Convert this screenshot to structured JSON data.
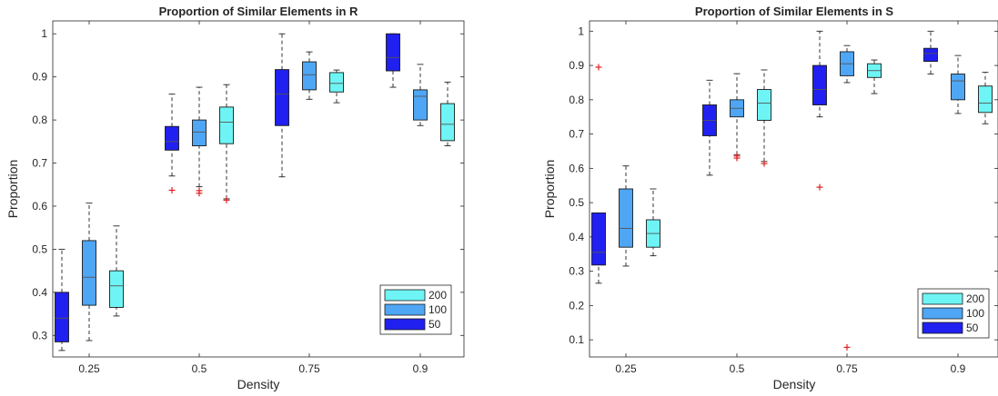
{
  "chart_data": [
    {
      "type": "boxplot",
      "title": "Proportion of Similar Elements in R",
      "xlabel": "Density",
      "ylabel": "Proportion",
      "ylim": [
        0.25,
        1.03
      ],
      "yticks": [
        "0.3",
        "0.4",
        "0.5",
        "0.6",
        "0.7",
        "0.8",
        "0.9",
        "1"
      ],
      "categories": [
        "0.25",
        "0.5",
        "0.75",
        "0.9"
      ],
      "grid": false,
      "legend_position": "bottom-right",
      "legend": [
        "200",
        "100",
        "50"
      ],
      "series": [
        {
          "name": "50",
          "color": "#2020f0",
          "boxes": [
            {
              "min": 0.265,
              "q1": 0.285,
              "median": 0.34,
              "q3": 0.4,
              "max": 0.5,
              "outliers": []
            },
            {
              "min": 0.67,
              "q1": 0.73,
              "median": 0.75,
              "q3": 0.785,
              "max": 0.86,
              "outliers": [
                0.637
              ]
            },
            {
              "min": 0.668,
              "q1": 0.787,
              "median": 0.86,
              "q3": 0.917,
              "max": 1.0,
              "outliers": []
            },
            {
              "min": 0.876,
              "q1": 0.914,
              "median": 0.945,
              "q3": 1.0,
              "max": 1.0,
              "outliers": []
            }
          ]
        },
        {
          "name": "100",
          "color": "#4ea6f5",
          "boxes": [
            {
              "min": 0.288,
              "q1": 0.37,
              "median": 0.435,
              "q3": 0.52,
              "max": 0.607,
              "outliers": []
            },
            {
              "min": 0.645,
              "q1": 0.74,
              "median": 0.772,
              "q3": 0.8,
              "max": 0.876,
              "outliers": [
                0.63,
                0.636
              ]
            },
            {
              "min": 0.848,
              "q1": 0.87,
              "median": 0.905,
              "q3": 0.935,
              "max": 0.958,
              "outliers": []
            },
            {
              "min": 0.787,
              "q1": 0.8,
              "median": 0.855,
              "q3": 0.87,
              "max": 0.929,
              "outliers": []
            }
          ]
        },
        {
          "name": "200",
          "color": "#6ef4f4",
          "boxes": [
            {
              "min": 0.345,
              "q1": 0.365,
              "median": 0.415,
              "q3": 0.45,
              "max": 0.554,
              "outliers": []
            },
            {
              "min": 0.617,
              "q1": 0.745,
              "median": 0.795,
              "q3": 0.83,
              "max": 0.882,
              "outliers": [
                0.614
              ]
            },
            {
              "min": 0.84,
              "q1": 0.865,
              "median": 0.885,
              "q3": 0.91,
              "max": 0.916,
              "outliers": []
            },
            {
              "min": 0.74,
              "q1": 0.752,
              "median": 0.79,
              "q3": 0.838,
              "max": 0.888,
              "outliers": []
            }
          ]
        }
      ]
    },
    {
      "type": "boxplot",
      "title": "Proportion of Similar Elements in S",
      "xlabel": "Density",
      "ylabel": "Proportion",
      "ylim": [
        0.05,
        1.03
      ],
      "yticks": [
        "0.1",
        "0.2",
        "0.3",
        "0.4",
        "0.5",
        "0.6",
        "0.7",
        "0.8",
        "0.9",
        "1"
      ],
      "categories": [
        "0.25",
        "0.5",
        "0.75",
        "0.9"
      ],
      "grid": false,
      "legend_position": "bottom-right",
      "legend": [
        "200",
        "100",
        "50"
      ],
      "series": [
        {
          "name": "50",
          "color": "#2020f0",
          "boxes": [
            {
              "min": 0.265,
              "q1": 0.318,
              "median": 0.355,
              "q3": 0.47,
              "max": 0.47,
              "outliers": [
                0.895
              ]
            },
            {
              "min": 0.58,
              "q1": 0.695,
              "median": 0.74,
              "q3": 0.785,
              "max": 0.857,
              "outliers": []
            },
            {
              "min": 0.75,
              "q1": 0.785,
              "median": 0.83,
              "q3": 0.9,
              "max": 1.0,
              "outliers": [
                0.545
              ]
            },
            {
              "min": 0.875,
              "q1": 0.912,
              "median": 0.935,
              "q3": 0.95,
              "max": 1.0,
              "outliers": []
            }
          ]
        },
        {
          "name": "100",
          "color": "#4ea6f5",
          "boxes": [
            {
              "min": 0.315,
              "q1": 0.37,
              "median": 0.425,
              "q3": 0.54,
              "max": 0.607,
              "outliers": []
            },
            {
              "min": 0.64,
              "q1": 0.75,
              "median": 0.775,
              "q3": 0.8,
              "max": 0.876,
              "outliers": [
                0.63,
                0.636
              ]
            },
            {
              "min": 0.85,
              "q1": 0.87,
              "median": 0.905,
              "q3": 0.94,
              "max": 0.958,
              "outliers": [
                0.078
              ]
            },
            {
              "min": 0.76,
              "q1": 0.8,
              "median": 0.855,
              "q3": 0.875,
              "max": 0.929,
              "outliers": []
            }
          ]
        },
        {
          "name": "200",
          "color": "#6ef4f4",
          "boxes": [
            {
              "min": 0.345,
              "q1": 0.37,
              "median": 0.41,
              "q3": 0.45,
              "max": 0.54,
              "outliers": []
            },
            {
              "min": 0.62,
              "q1": 0.74,
              "median": 0.79,
              "q3": 0.83,
              "max": 0.887,
              "outliers": [
                0.614
              ]
            },
            {
              "min": 0.818,
              "q1": 0.865,
              "median": 0.885,
              "q3": 0.905,
              "max": 0.916,
              "outliers": []
            },
            {
              "min": 0.73,
              "q1": 0.763,
              "median": 0.79,
              "q3": 0.84,
              "max": 0.88,
              "outliers": []
            }
          ]
        }
      ]
    }
  ]
}
